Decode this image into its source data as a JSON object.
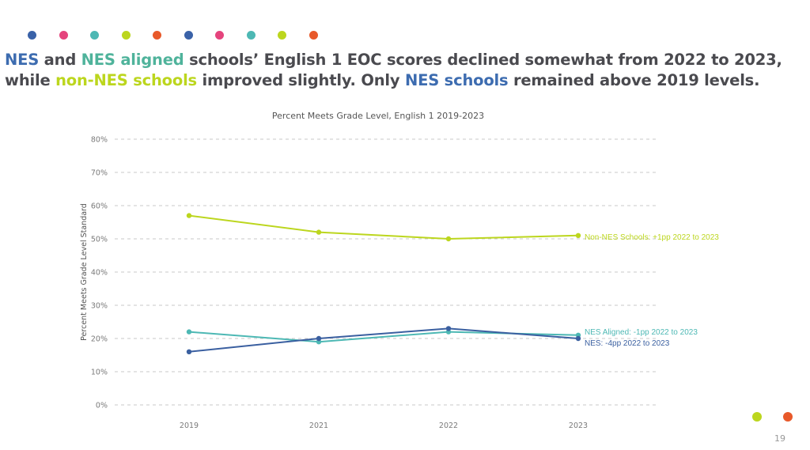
{
  "decor": {
    "top_dots": [
      "#3a62a8",
      "#e5447d",
      "#4db8b4",
      "#bcd61e",
      "#e8592a",
      "#3a62a8",
      "#e5447d",
      "#4db8b4",
      "#bcd61e",
      "#e8592a"
    ],
    "bottom_dots": [
      "#bcd61e",
      "#e8592a"
    ]
  },
  "headline": {
    "line1": [
      {
        "text": "NES",
        "color": "#3d6cb0"
      },
      {
        "text": " and ",
        "color": "#4a4a4f"
      },
      {
        "text": "NES aligned",
        "color": "#4fb39b"
      },
      {
        "text": " schools’ English 1 EOC scores declined somewhat from 2022 to 2023,",
        "color": "#4a4a4f"
      }
    ],
    "line2": [
      {
        "text": "while ",
        "color": "#4a4a4f"
      },
      {
        "text": "non-NES schools",
        "color": "#bcd61e"
      },
      {
        "text": " improved slightly. Only ",
        "color": "#4a4a4f"
      },
      {
        "text": "NES schools",
        "color": "#3d6cb0"
      },
      {
        "text": " remained above 2019 levels.",
        "color": "#4a4a4f"
      }
    ]
  },
  "page_number": "19",
  "chart_data": {
    "type": "line",
    "title": "Percent Meets Grade Level, English 1 2019-2023",
    "xlabel": "",
    "ylabel": "Percent Meets Grade Level Standard",
    "categories": [
      "2019",
      "2021",
      "2022",
      "2023"
    ],
    "ylim": [
      0,
      80
    ],
    "yticks": [
      0,
      10,
      20,
      30,
      40,
      50,
      60,
      70,
      80
    ],
    "ytick_labels": [
      "0%",
      "10%",
      "20%",
      "30%",
      "40%",
      "50%",
      "60%",
      "70%",
      "80%"
    ],
    "grid": "horizontal dashed",
    "legend": "none (end-of-line labels on right)",
    "series": [
      {
        "name": "Non-NES Schools",
        "color": "#bcd61e",
        "values": [
          57,
          52,
          50,
          51
        ],
        "label": "Non-NES Schools: +1pp 2022 to 2023"
      },
      {
        "name": "NES Aligned",
        "color": "#4db8b4",
        "values": [
          22,
          19,
          22,
          21
        ],
        "label": "NES Aligned: -1pp 2022 to 2023"
      },
      {
        "name": "NES",
        "color": "#3a5fa0",
        "values": [
          16,
          20,
          23,
          20
        ],
        "label": "NES: -4pp 2022 to 2023"
      }
    ]
  }
}
